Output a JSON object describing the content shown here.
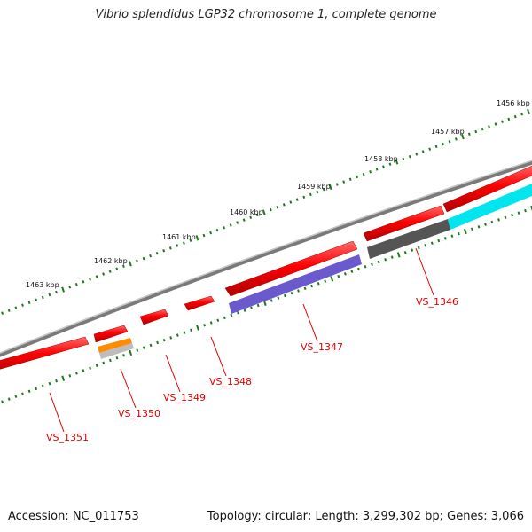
{
  "title": "Vibrio splendidus LGP32 chromosome 1, complete genome",
  "footer": {
    "accession": "Accession: NC_011753",
    "summary": "Topology: circular; Length: 3,299,302 bp; Genes: 3,066"
  },
  "scale_labels": [
    "1456 kbp",
    "1457 kbp",
    "1458 kbp",
    "1459 kbp",
    "1460 kbp",
    "1461 kbp",
    "1462 kbp",
    "1463 kbp"
  ],
  "gene_labels": [
    "VS_1346",
    "VS_1347",
    "VS_1348",
    "VS_1349",
    "VS_1350",
    "VS_1351"
  ],
  "colors": {
    "backbone": "#808080",
    "gene": "#ff0000",
    "gene_label": "#e00000",
    "tick": "#1a7a1a",
    "cog_purple": "#6a5acd",
    "cog_cyan": "#00e5ee",
    "cog_gray": "#555555",
    "cog_orange": "#ff8c00"
  }
}
